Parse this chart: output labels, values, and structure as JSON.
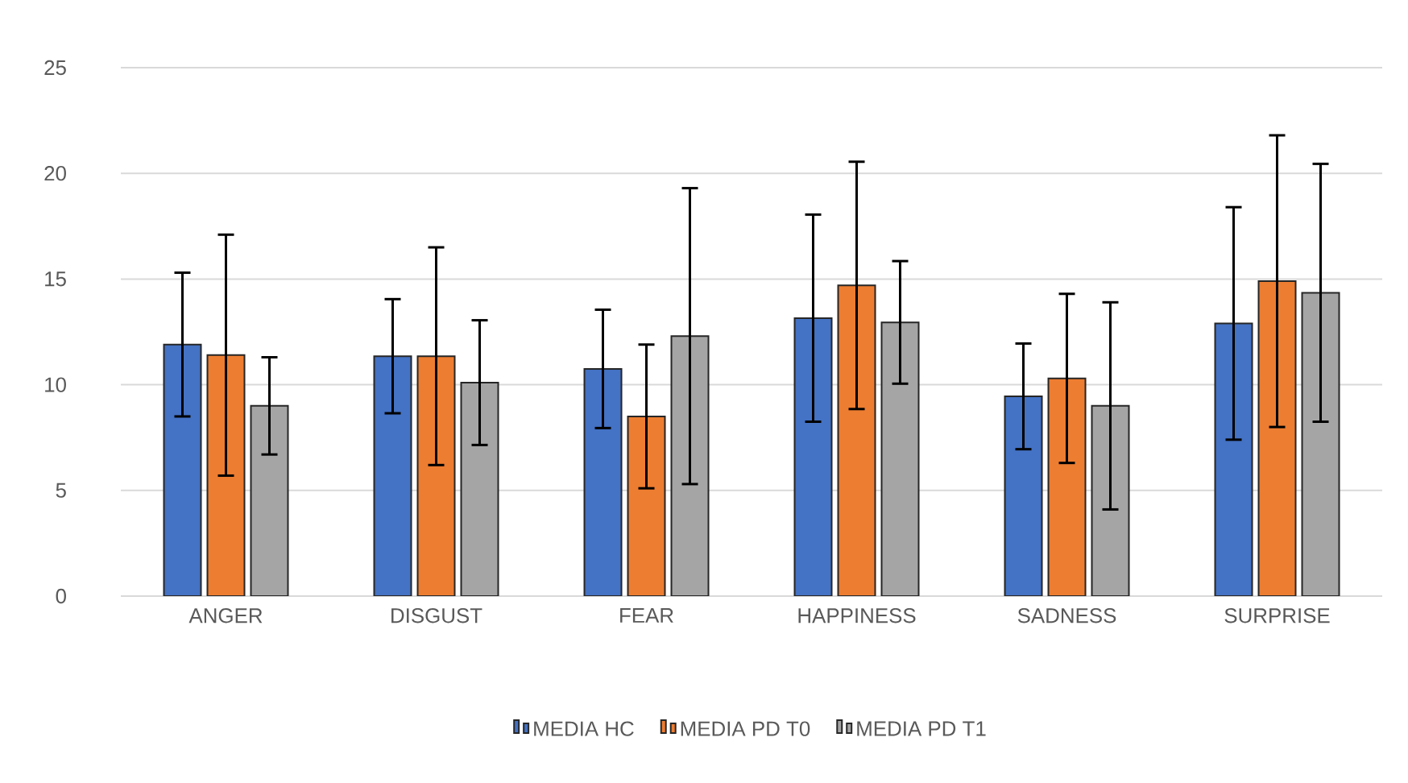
{
  "chart_data": {
    "type": "bar",
    "categories": [
      "ANGER",
      "DISGUST",
      "FEAR",
      "HAPPINESS",
      "SADNESS",
      "SURPRISE"
    ],
    "series": [
      {
        "name": "MEDIA HC",
        "color": "#4472c4",
        "values": [
          11.9,
          11.35,
          10.75,
          13.15,
          9.45,
          12.9
        ],
        "errors": [
          3.4,
          2.7,
          2.8,
          4.9,
          2.5,
          5.5
        ]
      },
      {
        "name": "MEDIA PD T0",
        "color": "#ed7d31",
        "values": [
          11.4,
          11.35,
          8.5,
          14.7,
          10.3,
          14.9
        ],
        "errors": [
          5.7,
          5.15,
          3.4,
          5.85,
          4.0,
          6.9
        ]
      },
      {
        "name": "MEDIA PD T1",
        "color": "#a5a5a5",
        "values": [
          9.0,
          10.1,
          12.3,
          12.95,
          9.0,
          14.35
        ],
        "errors": [
          2.3,
          2.95,
          7.0,
          2.9,
          4.9,
          6.1
        ]
      }
    ],
    "ylim": [
      0,
      25
    ],
    "yticks": [
      0,
      5,
      10,
      15,
      20,
      25
    ],
    "grid": "y",
    "legend": "bottom"
  }
}
